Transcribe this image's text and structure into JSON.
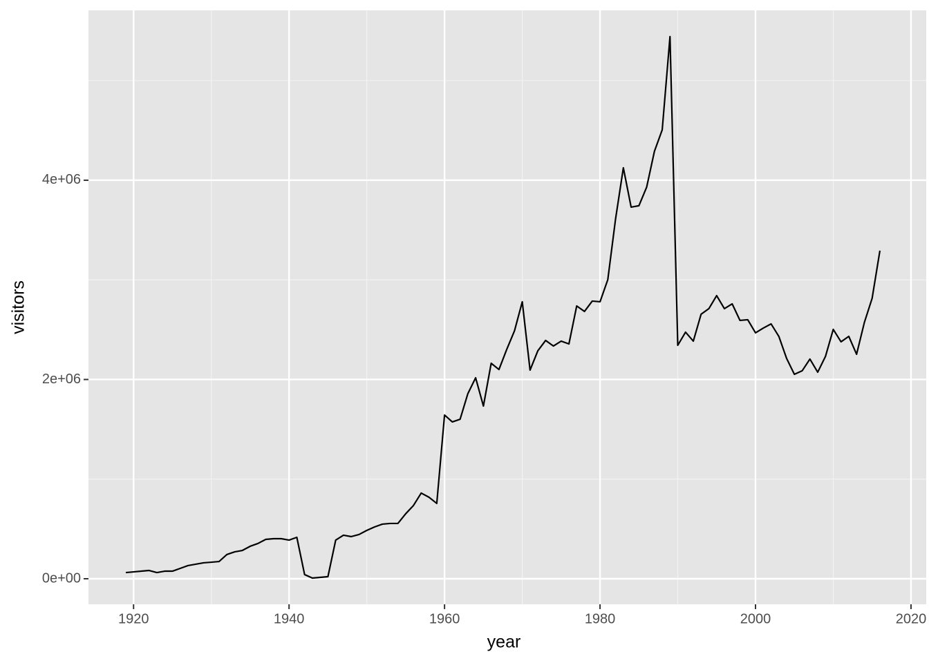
{
  "chart_data": {
    "type": "line",
    "x_label": "year",
    "y_label": "visitors",
    "x": [
      1919,
      1920,
      1921,
      1922,
      1923,
      1924,
      1925,
      1926,
      1927,
      1928,
      1929,
      1930,
      1931,
      1932,
      1933,
      1934,
      1935,
      1936,
      1937,
      1938,
      1939,
      1940,
      1941,
      1942,
      1943,
      1944,
      1945,
      1946,
      1947,
      1948,
      1949,
      1950,
      1951,
      1952,
      1953,
      1954,
      1955,
      1956,
      1957,
      1958,
      1959,
      1960,
      1961,
      1962,
      1963,
      1964,
      1965,
      1966,
      1967,
      1968,
      1969,
      1970,
      1971,
      1972,
      1973,
      1974,
      1975,
      1976,
      1977,
      1978,
      1979,
      1980,
      1981,
      1982,
      1983,
      1984,
      1985,
      1986,
      1987,
      1988,
      1989,
      1990,
      1991,
      1992,
      1993,
      1994,
      1995,
      1996,
      1997,
      1998,
      1999,
      2000,
      2001,
      2002,
      2003,
      2004,
      2005,
      2006,
      2007,
      2008,
      2009,
      2010,
      2011,
      2012,
      2013,
      2014,
      2015,
      2016
    ],
    "values": [
      62000,
      69000,
      76000,
      83000,
      62000,
      76000,
      76000,
      104000,
      132000,
      146000,
      160000,
      166000,
      173000,
      243000,
      270000,
      284000,
      326000,
      354000,
      395000,
      402000,
      402000,
      388000,
      416000,
      42000,
      7000,
      14000,
      21000,
      388000,
      437000,
      423000,
      444000,
      485000,
      520000,
      548000,
      555000,
      555000,
      652000,
      735000,
      860000,
      818000,
      756000,
      1643000,
      1574000,
      1601000,
      1858000,
      2017000,
      1733000,
      2163000,
      2100000,
      2302000,
      2489000,
      2780000,
      2094000,
      2288000,
      2392000,
      2336000,
      2385000,
      2357000,
      2738000,
      2683000,
      2787000,
      2780000,
      3002000,
      3612000,
      4125000,
      3730000,
      3744000,
      3931000,
      4291000,
      4506000,
      5442000,
      2343000,
      2475000,
      2385000,
      2655000,
      2711000,
      2842000,
      2711000,
      2759000,
      2593000,
      2600000,
      2468000,
      2516000,
      2558000,
      2433000,
      2211000,
      2052000,
      2087000,
      2205000,
      2073000,
      2232000,
      2503000,
      2378000,
      2433000,
      2253000,
      2572000,
      2815000,
      3293000
    ],
    "color": "#000000",
    "xlim": [
      1914.2,
      2021.96
    ],
    "ylim": [
      -256500,
      5705000
    ],
    "xticks": [
      1920,
      1940,
      1960,
      1980,
      2000,
      2020
    ],
    "x_minor_ticks": [
      1930,
      1950,
      1970,
      1990,
      2010
    ],
    "yticks": [
      {
        "value": 0,
        "label": "0e+00"
      },
      {
        "value": 2000000,
        "label": "2e+06"
      },
      {
        "value": 4000000,
        "label": "4e+06"
      }
    ],
    "y_minor_ticks": [
      1000000,
      3000000,
      5000000
    ],
    "grid": true
  }
}
